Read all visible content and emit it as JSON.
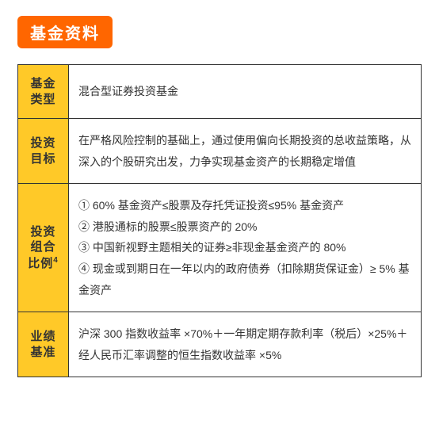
{
  "header": {
    "badge_text": "基金资料"
  },
  "table": {
    "rows": [
      {
        "label": "基金\n类型",
        "value": "混合型证券投资基金"
      },
      {
        "label": "投资\n目标",
        "value": "在严格风险控制的基础上，通过使用偏向长期投资的总收益策略，从深入的个股研究出发，力争实现基金资产的长期稳定增值"
      },
      {
        "label": "投资\n组合\n比例",
        "label_sup": "4",
        "value_items": [
          "① 60% 基金资产≤股票及存托凭证投资≤95% 基金资产",
          "② 港股通标的股票≤股票资产的 20%",
          "③ 中国新视野主题相关的证券≥非现金基金资产的 80%",
          "④ 现金或到期日在一年以内的政府债券（扣除期货保证金）≥ 5% 基金资产"
        ]
      },
      {
        "label": "业绩\n基准",
        "value": "沪深 300 指数收益率 ×70%＋一年期定期存款利率（税后）×25%＋ 经人民币汇率调整的恒生指数收益率 ×5%"
      }
    ]
  },
  "styles": {
    "badge_bg": "#ff6600",
    "badge_color": "#ffffff",
    "label_bg": "#ffc928",
    "border_color": "#333333",
    "text_color": "#333333",
    "value_bg": "#ffffff"
  }
}
